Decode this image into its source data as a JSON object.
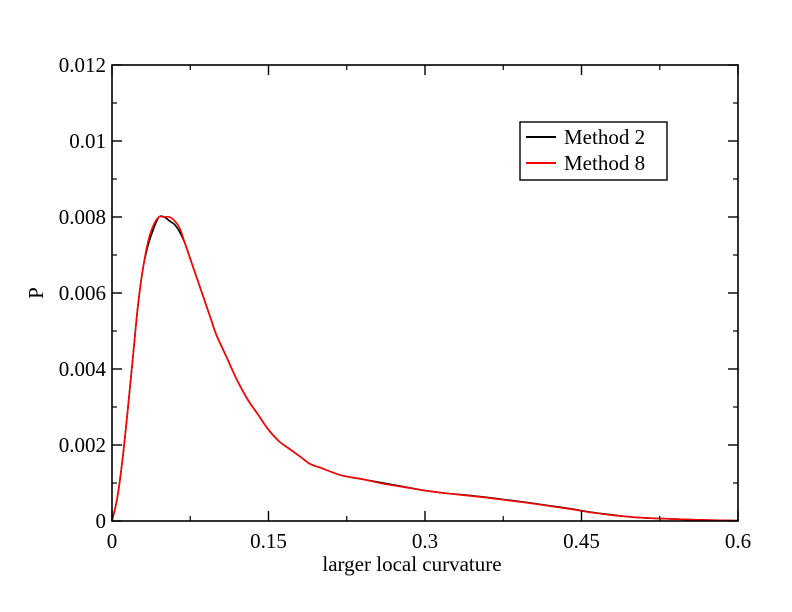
{
  "chart_data": {
    "type": "line",
    "title": "",
    "xlabel": "larger local curvature",
    "ylabel": "P",
    "xlim": [
      0,
      0.6
    ],
    "ylim": [
      0,
      0.012
    ],
    "xticks": [
      0,
      0.15,
      0.3,
      0.45,
      0.6
    ],
    "xtick_labels": [
      "0",
      "0.15",
      "0.3",
      "0.45",
      "0.6"
    ],
    "yticks": [
      0,
      0.002,
      0.004,
      0.006,
      0.008,
      0.01,
      0.012
    ],
    "ytick_labels": [
      "0",
      "0.002",
      "0.004",
      "0.006",
      "0.008",
      "0.01",
      "0.012"
    ],
    "grid": false,
    "legend_position": "top-right",
    "x": [
      0,
      0.005,
      0.01,
      0.015,
      0.02,
      0.025,
      0.03,
      0.035,
      0.04,
      0.045,
      0.05,
      0.055,
      0.06,
      0.065,
      0.07,
      0.075,
      0.08,
      0.085,
      0.09,
      0.095,
      0.1,
      0.11,
      0.12,
      0.13,
      0.14,
      0.15,
      0.16,
      0.17,
      0.18,
      0.19,
      0.2,
      0.22,
      0.24,
      0.26,
      0.28,
      0.3,
      0.32,
      0.34,
      0.36,
      0.38,
      0.4,
      0.42,
      0.44,
      0.46,
      0.48,
      0.5,
      0.52,
      0.54,
      0.56,
      0.58,
      0.6
    ],
    "series": [
      {
        "name": "Method 2",
        "color": "#000000",
        "values": [
          0.0,
          0.0006,
          0.0016,
          0.0029,
          0.0043,
          0.0057,
          0.0067,
          0.0073,
          0.0077,
          0.008,
          0.008,
          0.0079,
          0.0078,
          0.0076,
          0.0073,
          0.0069,
          0.0065,
          0.0061,
          0.0057,
          0.0053,
          0.0049,
          0.0043,
          0.0037,
          0.0032,
          0.0028,
          0.0024,
          0.0021,
          0.0019,
          0.0017,
          0.0015,
          0.0014,
          0.0012,
          0.0011,
          0.001,
          0.0009,
          0.0008,
          0.00073,
          0.00068,
          0.00062,
          0.00055,
          0.00048,
          0.0004,
          0.00032,
          0.00023,
          0.00016,
          0.0001,
          7e-05,
          5e-05,
          3e-05,
          2e-05,
          1e-05
        ]
      },
      {
        "name": "Method 8",
        "color": "#ff0000",
        "values": [
          0.0,
          0.0006,
          0.0016,
          0.0029,
          0.0043,
          0.0057,
          0.0067,
          0.0074,
          0.0078,
          0.008,
          0.008,
          0.008,
          0.0079,
          0.0077,
          0.0073,
          0.0069,
          0.0065,
          0.0061,
          0.0057,
          0.0053,
          0.0049,
          0.0043,
          0.0037,
          0.0032,
          0.0028,
          0.0024,
          0.0021,
          0.0019,
          0.0017,
          0.0015,
          0.0014,
          0.0012,
          0.0011,
          0.00098,
          0.00089,
          0.0008,
          0.00073,
          0.00067,
          0.00061,
          0.00054,
          0.00047,
          0.00039,
          0.00031,
          0.00022,
          0.00015,
          0.0001,
          7e-05,
          5e-05,
          3e-05,
          2e-05,
          1e-05
        ]
      }
    ]
  }
}
